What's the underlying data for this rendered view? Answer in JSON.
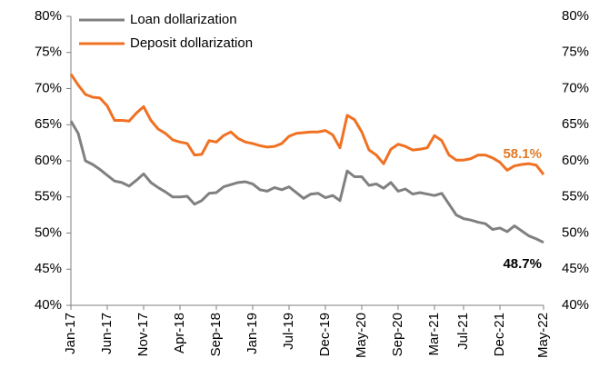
{
  "chart_data": {
    "type": "line",
    "legend": "upper left",
    "categories": [
      "Jan-17",
      null,
      null,
      null,
      null,
      "Jun-17",
      null,
      null,
      null,
      null,
      "Nov-17",
      null,
      null,
      null,
      null,
      "Apr-18",
      null,
      null,
      null,
      null,
      "Sep-18",
      null,
      null,
      null,
      null,
      "Jan-19",
      null,
      null,
      null,
      null,
      "Jul-19",
      null,
      null,
      null,
      null,
      "Dec-19",
      null,
      null,
      null,
      null,
      "May-20",
      null,
      null,
      null,
      null,
      "Sep-20",
      null,
      null,
      null,
      null,
      "Mar-21",
      null,
      null,
      null,
      "Jul-21",
      null,
      null,
      null,
      null,
      "Dec-21",
      null,
      null,
      null,
      null,
      null,
      "May-22"
    ],
    "series": [
      {
        "name": "Loan dollarization",
        "color": "#808080",
        "value_label_color": "#000000",
        "values": [
          65.5,
          63.8,
          60.0,
          59.5,
          58.8,
          58.0,
          57.2,
          57.0,
          56.5,
          57.3,
          58.2,
          57.0,
          56.3,
          55.7,
          55.0,
          55.0,
          55.1,
          54.0,
          54.5,
          55.5,
          55.6,
          56.4,
          56.7,
          57.0,
          57.1,
          56.8,
          56.0,
          55.8,
          56.3,
          56.0,
          56.4,
          55.6,
          54.8,
          55.4,
          55.5,
          54.9,
          55.2,
          54.5,
          58.6,
          57.8,
          57.8,
          56.6,
          56.8,
          56.2,
          57.0,
          55.8,
          56.1,
          55.4,
          55.6,
          55.4,
          55.2,
          55.5,
          54.0,
          52.5,
          52.0,
          51.8,
          51.5,
          51.3,
          50.5,
          50.7,
          50.2,
          51.0,
          50.3,
          49.6,
          49.2,
          48.7
        ],
        "value_labels": [
          null,
          null,
          null,
          null,
          null,
          null,
          null,
          null,
          null,
          null,
          null,
          null,
          null,
          null,
          null,
          null,
          null,
          null,
          null,
          null,
          null,
          null,
          null,
          null,
          null,
          null,
          null,
          null,
          null,
          null,
          null,
          null,
          null,
          null,
          null,
          null,
          null,
          null,
          null,
          null,
          null,
          null,
          null,
          null,
          null,
          null,
          null,
          null,
          null,
          null,
          null,
          null,
          null,
          null,
          null,
          null,
          null,
          null,
          null,
          null,
          null,
          null,
          null,
          null,
          null,
          "48.7%"
        ]
      },
      {
        "name": "Deposit dollarization",
        "color": "#f07122",
        "value_label_color": "#e27a26",
        "values": [
          72.0,
          70.5,
          69.2,
          68.8,
          68.7,
          67.6,
          65.6,
          65.6,
          65.5,
          66.6,
          67.5,
          65.6,
          64.4,
          63.8,
          62.9,
          62.6,
          62.4,
          60.8,
          60.9,
          62.8,
          62.6,
          63.5,
          64.0,
          63.1,
          62.6,
          62.4,
          62.1,
          61.9,
          62.0,
          62.4,
          63.4,
          63.8,
          63.9,
          64.0,
          64.0,
          64.2,
          63.6,
          61.8,
          66.3,
          65.7,
          64.0,
          61.5,
          60.8,
          59.6,
          61.6,
          62.3,
          62.0,
          61.5,
          61.6,
          61.8,
          63.5,
          62.8,
          60.8,
          60.1,
          60.1,
          60.3,
          60.8,
          60.8,
          60.4,
          59.8,
          58.7,
          59.3,
          59.5,
          59.6,
          59.4,
          58.1
        ],
        "value_labels": [
          null,
          null,
          null,
          null,
          null,
          null,
          null,
          null,
          null,
          null,
          null,
          null,
          null,
          null,
          null,
          null,
          null,
          null,
          null,
          null,
          null,
          null,
          null,
          null,
          null,
          null,
          null,
          null,
          null,
          null,
          null,
          null,
          null,
          null,
          null,
          null,
          null,
          null,
          null,
          null,
          null,
          null,
          null,
          null,
          null,
          null,
          null,
          null,
          null,
          null,
          null,
          null,
          null,
          null,
          null,
          null,
          null,
          null,
          null,
          null,
          null,
          null,
          null,
          null,
          null,
          "58.1%"
        ]
      }
    ],
    "ylim": [
      40,
      80
    ],
    "yticks": [
      {
        "value": 40,
        "label": "40%"
      },
      {
        "value": 45,
        "label": "45%"
      },
      {
        "value": 50,
        "label": "50%"
      },
      {
        "value": 55,
        "label": "55%"
      },
      {
        "value": 60,
        "label": "60%"
      },
      {
        "value": 65,
        "label": "65%"
      },
      {
        "value": 70,
        "label": "70%"
      },
      {
        "value": 75,
        "label": "75%"
      },
      {
        "value": 80,
        "label": "80%"
      }
    ],
    "y2lim": [
      40,
      80
    ],
    "y2ticks": [
      {
        "value": 40,
        "label": "40%"
      },
      {
        "value": 45,
        "label": "45%"
      },
      {
        "value": 50,
        "label": "50%"
      },
      {
        "value": 55,
        "label": "55%"
      },
      {
        "value": 60,
        "label": "60%"
      },
      {
        "value": 65,
        "label": "65%"
      },
      {
        "value": 70,
        "label": "70%"
      },
      {
        "value": 75,
        "label": "75%"
      },
      {
        "value": 80,
        "label": "80%"
      }
    ]
  }
}
